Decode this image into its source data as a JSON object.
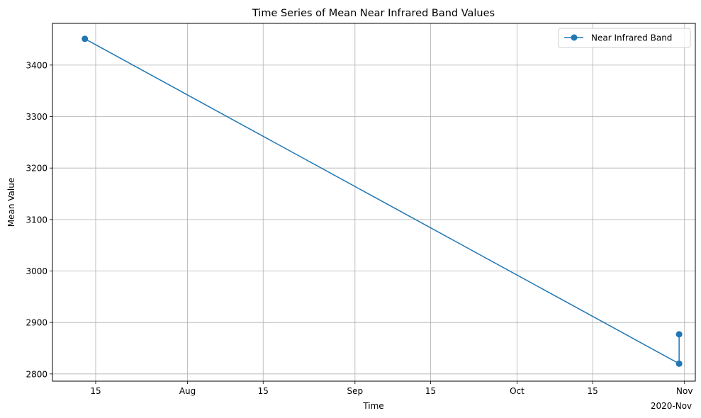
{
  "chart_data": {
    "type": "line",
    "title": "Time Series of Mean Near Infrared Band Values",
    "xlabel": "Time",
    "ylabel": "Mean Value",
    "x_offset_label": "2020-Nov",
    "x_ticks": [
      {
        "date": "2020-07-15",
        "label": "15"
      },
      {
        "date": "2020-08-01",
        "label": "Aug"
      },
      {
        "date": "2020-08-15",
        "label": "15"
      },
      {
        "date": "2020-09-01",
        "label": "Sep"
      },
      {
        "date": "2020-09-15",
        "label": "15"
      },
      {
        "date": "2020-10-01",
        "label": "Oct"
      },
      {
        "date": "2020-10-15",
        "label": "15"
      },
      {
        "date": "2020-11-01",
        "label": "Nov"
      }
    ],
    "y_ticks": [
      2800,
      2900,
      3000,
      3100,
      3200,
      3300,
      3400
    ],
    "xlim": [
      "2020-07-07",
      "2020-11-03"
    ],
    "ylim": [
      2786,
      3481
    ],
    "grid": true,
    "legend": "top-right",
    "series": [
      {
        "name": "Near Infrared Band",
        "color": "#1f77b4",
        "marker": "circle",
        "points": [
          {
            "x": "2020-07-13",
            "y": 3451
          },
          {
            "x": "2020-10-31",
            "y": 2820
          },
          {
            "x": "2020-10-31",
            "y": 2877
          }
        ]
      }
    ]
  }
}
